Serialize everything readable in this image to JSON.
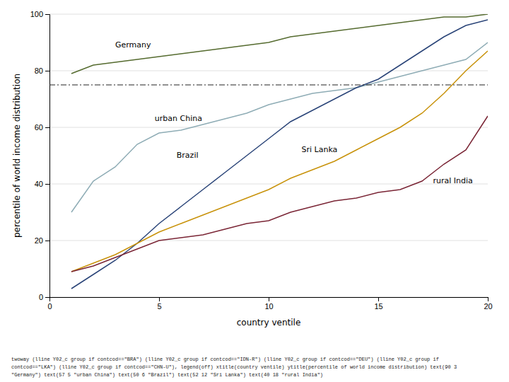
{
  "chart_data": {
    "type": "line",
    "xlabel": "country ventile",
    "ylabel": "percentile of world income distribution",
    "x": [
      1,
      2,
      3,
      4,
      5,
      6,
      7,
      8,
      9,
      10,
      11,
      12,
      13,
      14,
      15,
      16,
      17,
      18,
      19,
      20
    ],
    "xlim": [
      0,
      20
    ],
    "ylim": [
      0,
      100
    ],
    "xticks": [
      0,
      5,
      10,
      15,
      20
    ],
    "yticks": [
      0,
      20,
      40,
      60,
      80,
      100
    ],
    "grid": true,
    "series": [
      {
        "color": "#556b2f",
        "values": [
          79,
          82,
          83,
          84,
          85,
          86,
          87,
          88,
          89,
          90,
          92,
          93,
          94,
          95,
          96,
          97,
          98,
          99,
          99,
          100
        ]
      },
      {
        "color": "#8eacb5",
        "values": [
          30,
          41,
          46,
          54,
          58,
          59,
          61,
          63,
          65,
          68,
          70,
          72,
          73,
          74,
          76,
          78,
          80,
          82,
          84,
          90
        ]
      },
      {
        "color": "#2a4478",
        "values": [
          3,
          8,
          13,
          19,
          26,
          32,
          38,
          44,
          50,
          56,
          62,
          66,
          70,
          74,
          77,
          82,
          87,
          92,
          96,
          98
        ]
      },
      {
        "color": "#c8920a",
        "values": [
          9,
          12,
          15,
          19,
          23,
          26,
          29,
          32,
          35,
          38,
          42,
          45,
          48,
          52,
          56,
          60,
          65,
          72,
          80,
          87
        ]
      },
      {
        "color": "#7a2535",
        "values": [
          9,
          11,
          14,
          17,
          20,
          21,
          22,
          24,
          26,
          27,
          30,
          32,
          34,
          35,
          37,
          38,
          41,
          47,
          52,
          64
        ]
      }
    ],
    "hlines": [
      {
        "y": 75,
        "line_style": "dashdot"
      }
    ],
    "annotations": [
      {
        "text": "Germany",
        "x": 3.0,
        "y": 89
      },
      {
        "text": "urban China",
        "x": 4.8,
        "y": 63
      },
      {
        "text": "Brazil",
        "x": 5.8,
        "y": 50
      },
      {
        "text": "Sri Lanka",
        "x": 11.5,
        "y": 52
      },
      {
        "text": "rural India",
        "x": 17.5,
        "y": 41
      }
    ],
    "caption": [
      "twoway (lline Y02_c group if contcod==\"BRA\") (lline Y02_c group if contcod==\"IDN-R\") (lline Y02_c group if contcod==\"DEU\") (lline Y02_c group if",
      "contcod==\"LKA\") (lline Y02_c group if contcod==\"CHN-U\"), legend(off) xtitle(country ventile) ytitle(percentile of world income distribution) text(90 3",
      "\"Germany\") text(57 5 \"urban China\") text(50 6 \"Brazil\") text(52 12 \"Sri Lanka\") text(40 18 \"rural India\")"
    ]
  }
}
